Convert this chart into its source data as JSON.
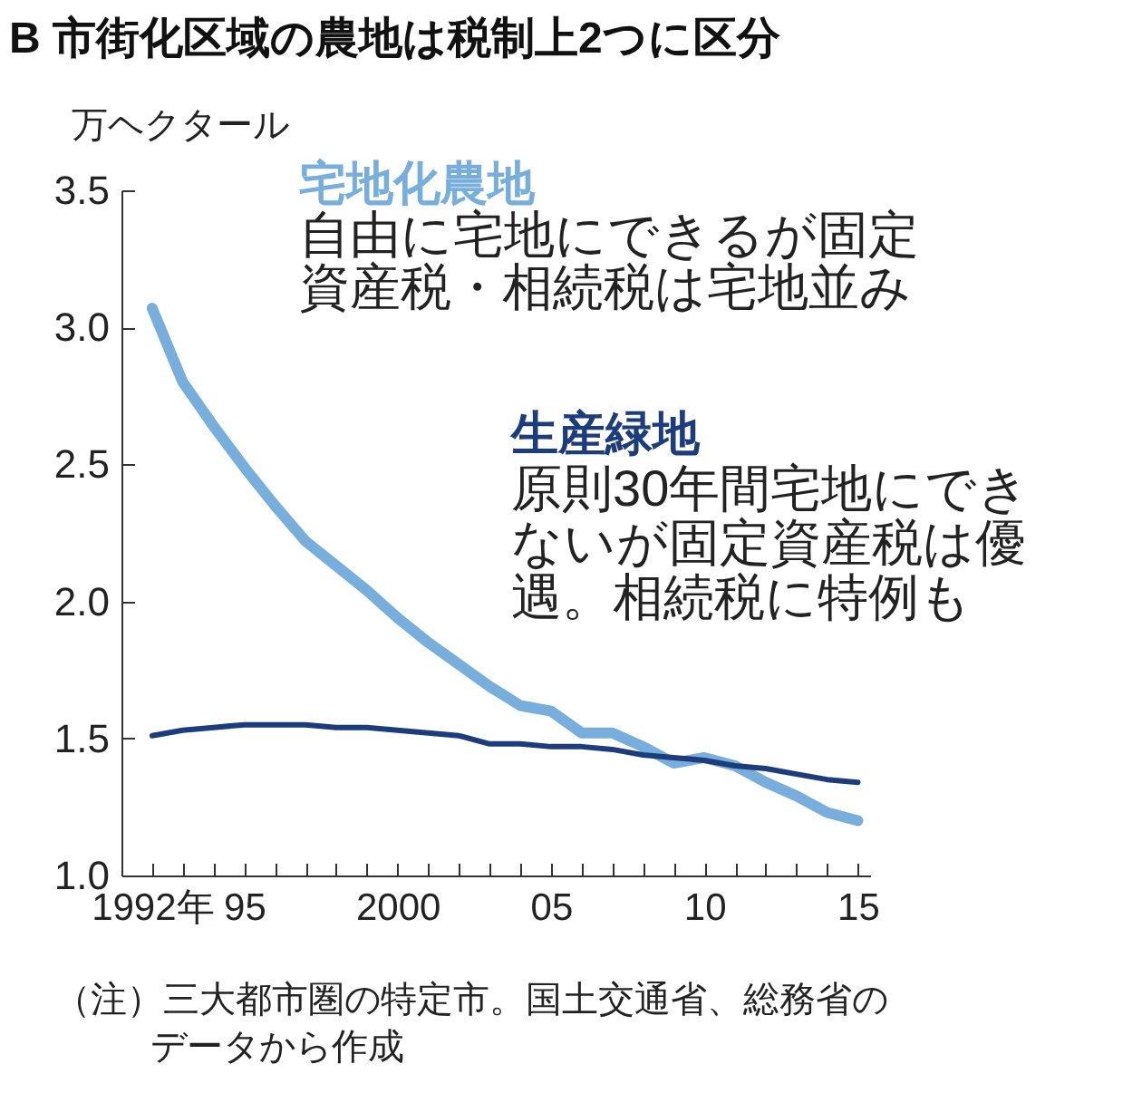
{
  "chart_data": {
    "type": "line",
    "title": "B 市街化区域の農地は税制上2つに区分",
    "ylabel": "万ヘクタール",
    "x": [
      1992,
      1993,
      1994,
      1995,
      1996,
      1997,
      1998,
      1999,
      2000,
      2001,
      2002,
      2003,
      2004,
      2005,
      2006,
      2007,
      2008,
      2009,
      2010,
      2011,
      2012,
      2013,
      2014,
      2015
    ],
    "series": [
      {
        "name": "宅地化農地",
        "color": "#78aedb",
        "values": [
          3.07,
          2.8,
          2.64,
          2.49,
          2.35,
          2.22,
          2.13,
          2.04,
          1.94,
          1.85,
          1.77,
          1.69,
          1.62,
          1.6,
          1.52,
          1.52,
          1.47,
          1.41,
          1.43,
          1.4,
          1.34,
          1.29,
          1.23,
          1.2
        ]
      },
      {
        "name": "生産緑地",
        "color": "#1c3c7c",
        "values": [
          1.51,
          1.53,
          1.54,
          1.55,
          1.55,
          1.55,
          1.54,
          1.54,
          1.53,
          1.52,
          1.51,
          1.48,
          1.48,
          1.47,
          1.47,
          1.46,
          1.44,
          1.43,
          1.42,
          1.4,
          1.39,
          1.37,
          1.35,
          1.34
        ]
      }
    ],
    "annotations": [
      "自由に宅地にできるが固定資産税・相続税は宅地並み",
      "原則30年間宅地にできないが固定資産税は優遇。相続税に特例も",
      "（注）三大都市圏の特定市。国土交通省、総務省のデータから作成"
    ],
    "xlim": [
      1991,
      2015.4
    ],
    "xticks": [
      {
        "value": 1992,
        "label": "1992年"
      },
      {
        "value": 1993,
        "label": null
      },
      {
        "value": 1994,
        "label": null
      },
      {
        "value": 1995,
        "label": "95"
      },
      {
        "value": 1996,
        "label": null
      },
      {
        "value": 1997,
        "label": null
      },
      {
        "value": 1998,
        "label": null
      },
      {
        "value": 1999,
        "label": null
      },
      {
        "value": 2000,
        "label": "2000"
      },
      {
        "value": 2001,
        "label": null
      },
      {
        "value": 2002,
        "label": null
      },
      {
        "value": 2003,
        "label": null
      },
      {
        "value": 2004,
        "label": null
      },
      {
        "value": 2005,
        "label": "05"
      },
      {
        "value": 2006,
        "label": null
      },
      {
        "value": 2007,
        "label": null
      },
      {
        "value": 2008,
        "label": null
      },
      {
        "value": 2009,
        "label": null
      },
      {
        "value": 2010,
        "label": "10"
      },
      {
        "value": 2011,
        "label": null
      },
      {
        "value": 2012,
        "label": null
      },
      {
        "value": 2013,
        "label": null
      },
      {
        "value": 2014,
        "label": null
      },
      {
        "value": 2015,
        "label": "15"
      }
    ],
    "ylim": [
      1.0,
      3.5
    ],
    "yticks": [
      {
        "value": 1.0,
        "label": "1.0"
      },
      1.5,
      {
        "value": 2.0,
        "label": "2.0"
      },
      2.5,
      {
        "value": 3.0,
        "label": "3.0"
      },
      3.5
    ],
    "grid": false,
    "marker": "none",
    "line_style": "solid"
  }
}
